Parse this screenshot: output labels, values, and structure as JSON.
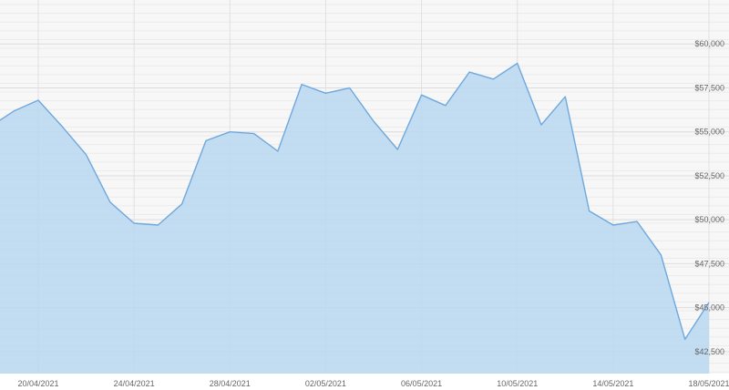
{
  "chart_data": {
    "type": "area",
    "title": "",
    "xlabel": "",
    "ylabel": "",
    "x_ticks": [
      "20/04/2021",
      "24/04/2021",
      "28/04/2021",
      "02/05/2021",
      "06/05/2021",
      "10/05/2021",
      "14/05/2021",
      "18/05/2021"
    ],
    "y_ticks": [
      "$42,500",
      "$45,000",
      "$47,500",
      "$50,000",
      "$52,500",
      "$55,000",
      "$57,500",
      "$60,000"
    ],
    "y_tick_values": [
      42500,
      45000,
      47500,
      50000,
      52500,
      55000,
      57500,
      60000
    ],
    "ylim": [
      41250,
      62500
    ],
    "xlim": [
      "2021-04-18",
      "2021-05-18"
    ],
    "grid": true,
    "legend": "none",
    "colors": {
      "line": "#6fa8dc",
      "fill": "#b9d7f1",
      "grid": "#e6e6e6",
      "axis_text": "#666666"
    },
    "series": [
      {
        "x": [
          "2021-04-18",
          "2021-04-19",
          "2021-04-20",
          "2021-04-21",
          "2021-04-22",
          "2021-04-23",
          "2021-04-24",
          "2021-04-25",
          "2021-04-26",
          "2021-04-27",
          "2021-04-28",
          "2021-04-29",
          "2021-04-30",
          "2021-05-01",
          "2021-05-02",
          "2021-05-03",
          "2021-05-04",
          "2021-05-05",
          "2021-05-06",
          "2021-05-07",
          "2021-05-08",
          "2021-05-09",
          "2021-05-10",
          "2021-05-11",
          "2021-05-12",
          "2021-05-13",
          "2021-05-14",
          "2021-05-15",
          "2021-05-16",
          "2021-05-17",
          "2021-05-18"
        ],
        "values": [
          55300,
          56200,
          56800,
          55300,
          53700,
          51000,
          49800,
          49700,
          50900,
          54500,
          55000,
          54900,
          53900,
          57700,
          57200,
          57500,
          55600,
          54000,
          57100,
          56500,
          58400,
          58000,
          58900,
          55400,
          57000,
          50500,
          49700,
          49900,
          48000,
          43200,
          45300
        ]
      }
    ]
  }
}
